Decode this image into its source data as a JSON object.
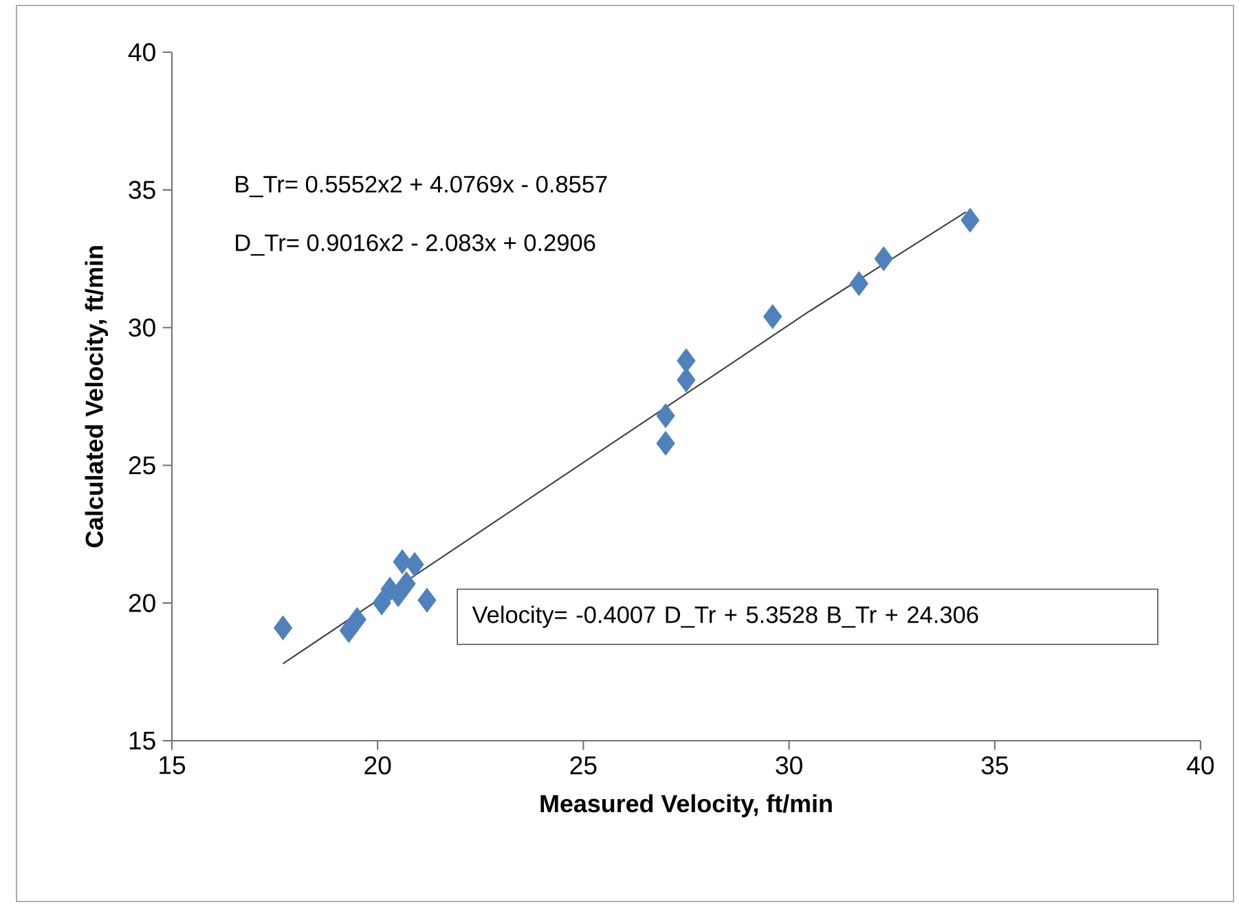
{
  "chart_data": {
    "type": "scatter",
    "xlabel": "Measured Velocity, ft/min",
    "ylabel": "Calculated Velocity, ft/min",
    "xlim": [
      15,
      40
    ],
    "ylim": [
      15,
      40
    ],
    "xticks": [
      15,
      20,
      25,
      30,
      35,
      40
    ],
    "yticks": [
      15,
      20,
      25,
      30,
      35,
      40
    ],
    "series": [
      {
        "marker": "diamond",
        "color": "#4f81bd",
        "x": [
          17.7,
          19.3,
          19.5,
          20.1,
          20.3,
          20.5,
          20.7,
          20.6,
          20.9,
          21.2,
          27.0,
          27.0,
          27.5,
          27.5,
          29.6,
          31.7,
          32.3,
          34.4
        ],
        "values": [
          19.1,
          19.0,
          19.4,
          20.0,
          20.5,
          20.3,
          20.7,
          21.5,
          21.4,
          20.1,
          25.8,
          26.8,
          28.1,
          28.8,
          30.4,
          31.6,
          32.5,
          33.9
        ]
      },
      {
        "type": "line",
        "marker": "none",
        "color": "#404040",
        "x": [
          17.7,
          25.0,
          30.5,
          34.3
        ],
        "values": [
          17.8,
          25.1,
          30.6,
          34.2
        ]
      }
    ],
    "annotations": [
      "B_Tr= 0.5552x2 + 4.0769x - 0.8557",
      "D_Tr= 0.9016x2 - 2.083x + 0.2906",
      "Velocity= -0.4007 D_Tr + 5.3528 B_Tr + 24.306"
    ]
  }
}
